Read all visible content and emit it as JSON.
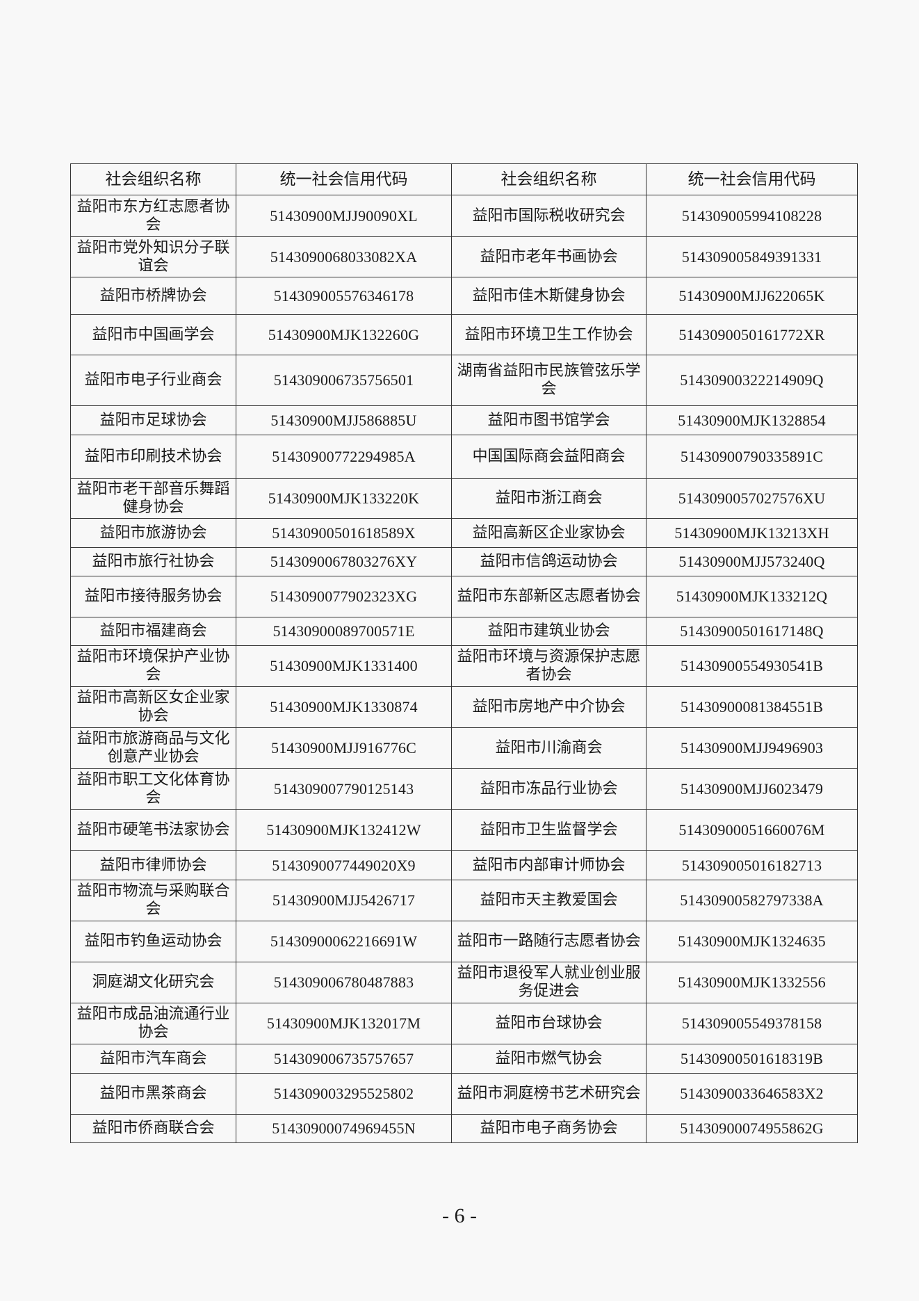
{
  "table": {
    "headers": [
      "社会组织名称",
      "统一社会信用代码",
      "社会组织名称",
      "统一社会信用代码"
    ],
    "rows": [
      [
        "益阳市东方红志愿者协会",
        "51430900MJJ90090XL",
        "益阳市国际税收研究会",
        "514309005994108228"
      ],
      [
        "益阳市党外知识分子联谊会",
        "5143090068033082XA",
        "益阳市老年书画协会",
        "514309005849391331"
      ],
      [
        "益阳市桥牌协会",
        "514309005576346178",
        "益阳市佳木斯健身协会",
        "51430900MJJ622065K"
      ],
      [
        "益阳市中国画学会",
        "51430900MJK132260G",
        "益阳市环境卫生工作协会",
        "5143090050161772XR"
      ],
      [
        "益阳市电子行业商会",
        "514309006735756501",
        "湖南省益阳市民族管弦乐学会",
        "51430900322214909Q"
      ],
      [
        "益阳市足球协会",
        "51430900MJJ586885U",
        "益阳市图书馆学会",
        "51430900MJK1328854"
      ],
      [
        "益阳市印刷技术协会",
        "51430900772294985A",
        "中国国际商会益阳商会",
        "51430900790335891C"
      ],
      [
        "益阳市老干部音乐舞蹈健身协会",
        "51430900MJK133220K",
        "益阳市浙江商会",
        "5143090057027576XU"
      ],
      [
        "益阳市旅游协会",
        "51430900501618589X",
        "益阳高新区企业家协会",
        "51430900MJK13213XH"
      ],
      [
        "益阳市旅行社协会",
        "5143090067803276XY",
        "益阳市信鸽运动协会",
        "51430900MJJ573240Q"
      ],
      [
        "益阳市接待服务协会",
        "5143090077902323XG",
        "益阳市东部新区志愿者协会",
        "51430900MJK133212Q"
      ],
      [
        "益阳市福建商会",
        "51430900089700571E",
        "益阳市建筑业协会",
        "51430900501617148Q"
      ],
      [
        "益阳市环境保护产业协会",
        "51430900MJK1331400",
        "益阳市环境与资源保护志愿者协会",
        "51430900554930541B"
      ],
      [
        "益阳市高新区女企业家协会",
        "51430900MJK1330874",
        "益阳市房地产中介协会",
        "51430900081384551B"
      ],
      [
        "益阳市旅游商品与文化创意产业协会",
        "51430900MJJ916776C",
        "益阳市川渝商会",
        "51430900MJJ9496903"
      ],
      [
        "益阳市职工文化体育协会",
        "514309007790125143",
        "益阳市冻品行业协会",
        "51430900MJJ6023479"
      ],
      [
        "益阳市硬笔书法家协会",
        "51430900MJK132412W",
        "益阳市卫生监督学会",
        "51430900051660076M"
      ],
      [
        "益阳市律师协会",
        "5143090077449020X9",
        "益阳市内部审计师协会",
        "514309005016182713"
      ],
      [
        "益阳市物流与采购联合会",
        "51430900MJJ5426717",
        "益阳市天主教爱国会",
        "51430900582797338A"
      ],
      [
        "益阳市钓鱼运动协会",
        "51430900062216691W",
        "益阳市一路随行志愿者协会",
        "51430900MJK1324635"
      ],
      [
        "洞庭湖文化研究会",
        "514309006780487883",
        "益阳市退役军人就业创业服务促进会",
        "51430900MJK1332556"
      ],
      [
        "益阳市成品油流通行业协会",
        "51430900MJK132017M",
        "益阳市台球协会",
        "514309005549378158"
      ],
      [
        "益阳市汽车商会",
        "514309006735757657",
        "益阳市燃气协会",
        "51430900501618319B"
      ],
      [
        "益阳市黑茶商会",
        "514309003295525802",
        "益阳市洞庭榜书艺术研究会",
        "5143090033646583X2"
      ],
      [
        "益阳市侨商联合会",
        "51430900074969455N",
        "益阳市电子商务协会",
        "51430900074955862G"
      ]
    ]
  },
  "footer": {
    "page_number": "- 6 -"
  }
}
